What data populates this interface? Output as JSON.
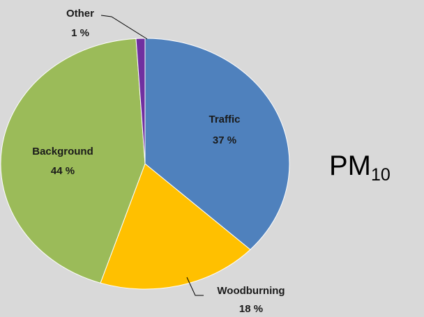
{
  "chart_data": {
    "type": "pie",
    "title": {
      "text": "PM",
      "subscript": "10"
    },
    "categories": [
      "Traffic",
      "Woodburning",
      "Background",
      "Other"
    ],
    "values": [
      37,
      18,
      44,
      1
    ],
    "value_labels": [
      "37 %",
      "18 %",
      "44 %",
      "1 %"
    ],
    "colors": [
      "#4f81bd",
      "#ffc000",
      "#9bbb59",
      "#7030a0"
    ],
    "start_angle": 0,
    "direction": "clockwise"
  }
}
